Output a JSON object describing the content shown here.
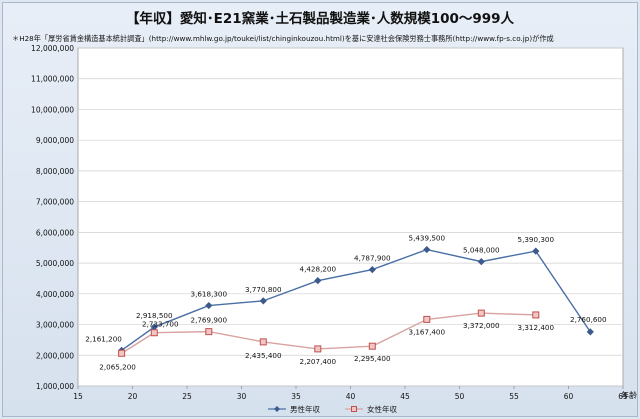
{
  "chart_data": {
    "type": "line",
    "title": "【年収】愛知･E21窯業･土石製品製造業･人数規模100～999人",
    "subtitle": "＊H28年「厚労省賃金構造基本統計調査」(http://www.mhlw.go.jp/toukei/list/chinginkouzou.html)を基に安達社会保険労務士事務所(http://www.fp-s.co.jp)が作成",
    "xlabel": "年齢",
    "ylabel": "",
    "xlim": [
      15,
      65
    ],
    "ylim": [
      1000000,
      12000000
    ],
    "x_ticks": [
      15,
      20,
      25,
      30,
      35,
      40,
      45,
      50,
      55,
      60,
      65
    ],
    "x_tick_labels": [
      "15",
      "20",
      "25",
      "30",
      "35",
      "40",
      "45",
      "50",
      "55",
      "60",
      "65"
    ],
    "y_ticks": [
      1000000,
      2000000,
      3000000,
      4000000,
      5000000,
      6000000,
      7000000,
      8000000,
      9000000,
      10000000,
      11000000,
      12000000
    ],
    "y_tick_labels": [
      "1,000,000",
      "2,000,000",
      "3,000,000",
      "4,000,000",
      "5,000,000",
      "6,000,000",
      "7,000,000",
      "8,000,000",
      "9,000,000",
      "10,000,000",
      "11,000,000",
      "12,000,000"
    ],
    "grid": true,
    "legend_position": "bottom",
    "series": [
      {
        "name": "男性年収",
        "color": "#3c5a8c",
        "marker": "diamond",
        "x": [
          19,
          22,
          27,
          32,
          37,
          42,
          47,
          52,
          57,
          62
        ],
        "values": [
          2161200,
          2918500,
          3618300,
          3770800,
          4428200,
          4787900,
          5439500,
          5048000,
          5390300,
          2760600
        ],
        "labels": [
          "2,161,200",
          "2,918,500",
          "3,618,300",
          "3,770,800",
          "4,428,200",
          "4,787,900",
          "5,439,500",
          "5,048,000",
          "5,390,300",
          "2,760,600"
        ]
      },
      {
        "name": "女性年収",
        "color": "#c0504d",
        "marker": "square",
        "x": [
          19,
          22,
          27,
          32,
          37,
          42,
          47,
          52,
          57
        ],
        "values": [
          2065200,
          2733700,
          2769900,
          2435400,
          2207400,
          2295400,
          3167400,
          3372000,
          3312400
        ],
        "labels": [
          "2,065,200",
          "2,733,700",
          "2,769,900",
          "2,435,400",
          "2,207,400",
          "2,295,400",
          "3,167,400",
          "3,372,000",
          "3,312,400"
        ]
      }
    ]
  }
}
